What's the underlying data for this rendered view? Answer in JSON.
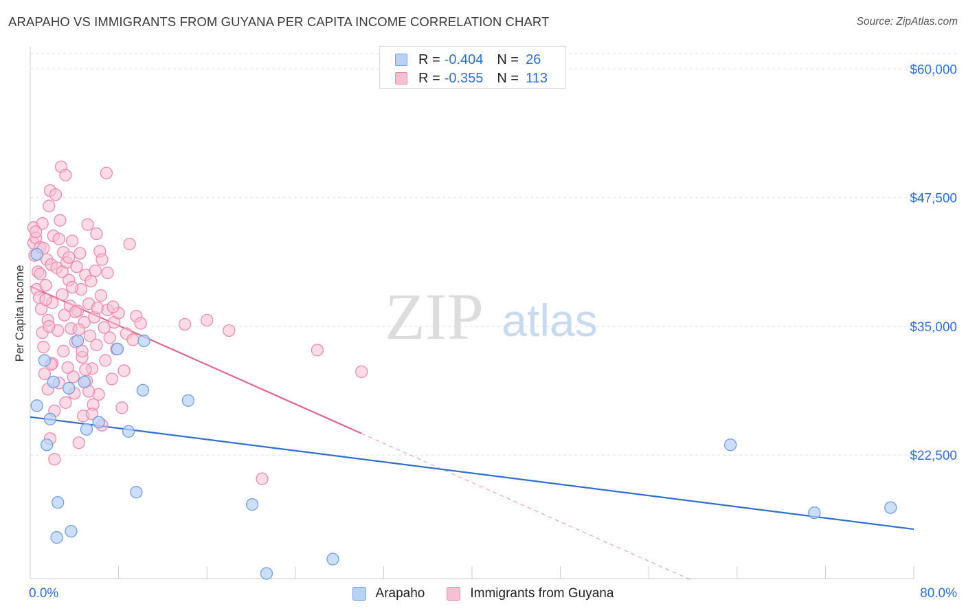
{
  "title": "ARAPAHO VS IMMIGRANTS FROM GUYANA PER CAPITA INCOME CORRELATION CHART",
  "source": "Source: ZipAtlas.com",
  "watermark": {
    "zip": "ZIP",
    "atlas": "atlas"
  },
  "colors": {
    "blue": "#2e6fd0",
    "blue_fill": "#b8d2f5",
    "blue_stroke": "#6f9fe0",
    "pink": "#e0678f",
    "pink_fill": "#f7bfd2",
    "pink_stroke": "#eb8bab",
    "axis_label": "#2e6fd0",
    "grid": "#dddddd"
  },
  "legend_top": {
    "rows": [
      {
        "r_label": "R =",
        "r_value": "-0.404",
        "n_label": "N =",
        "n_value": "26",
        "color": "blue"
      },
      {
        "r_label": "R =",
        "r_value": "-0.355",
        "n_label": "N =",
        "n_value": "113",
        "color": "pink"
      }
    ]
  },
  "legend_bottom": [
    {
      "label": "Arapaho",
      "color": "blue"
    },
    {
      "label": "Immigrants from Guyana",
      "color": "pink"
    }
  ],
  "chart_data": {
    "type": "scatter",
    "title": "ARAPAHO VS IMMIGRANTS FROM GUYANA PER CAPITA INCOME CORRELATION CHART",
    "xlabel": "",
    "ylabel": "Per Capita Income",
    "xlim": [
      0,
      80
    ],
    "ylim": [
      10500,
      61500
    ],
    "x_tick_labels": [
      "0.0%",
      "80.0%"
    ],
    "y_ticks": [
      22500,
      35000,
      47500,
      60000
    ],
    "y_tick_labels": [
      "$22,500",
      "$35,000",
      "$47,500",
      "$60,000"
    ],
    "grid": true,
    "legend": "top-center",
    "series": [
      {
        "name": "Arapaho",
        "color": "blue",
        "points": [
          [
            0.6,
            42000
          ],
          [
            0.6,
            27300
          ],
          [
            1.3,
            31700
          ],
          [
            1.8,
            26000
          ],
          [
            1.5,
            23500
          ],
          [
            2.1,
            29600
          ],
          [
            2.5,
            17900
          ],
          [
            2.4,
            14500
          ],
          [
            3.5,
            29000
          ],
          [
            3.7,
            15100
          ],
          [
            4.3,
            33600
          ],
          [
            4.9,
            29600
          ],
          [
            5.1,
            25000
          ],
          [
            6.2,
            25700
          ],
          [
            7.9,
            32800
          ],
          [
            8.9,
            24800
          ],
          [
            9.6,
            18900
          ],
          [
            10.2,
            28800
          ],
          [
            10.3,
            33600
          ],
          [
            14.3,
            27800
          ],
          [
            20.1,
            17700
          ],
          [
            21.4,
            11000
          ],
          [
            27.4,
            12400
          ],
          [
            63.4,
            23500
          ],
          [
            71.0,
            16900
          ],
          [
            77.9,
            17400
          ]
        ],
        "trend": {
          "x": [
            0,
            80
          ],
          "y": [
            26200,
            15300
          ]
        }
      },
      {
        "name": "Immigrants from Guyana",
        "color": "pink",
        "points": [
          [
            0.3,
            43100
          ],
          [
            0.3,
            44600
          ],
          [
            0.4,
            41900
          ],
          [
            0.5,
            43600
          ],
          [
            0.6,
            38600
          ],
          [
            0.7,
            40300
          ],
          [
            0.8,
            37800
          ],
          [
            0.9,
            42700
          ],
          [
            1.0,
            36700
          ],
          [
            1.1,
            34400
          ],
          [
            1.1,
            45000
          ],
          [
            1.2,
            33000
          ],
          [
            1.3,
            30400
          ],
          [
            1.4,
            39000
          ],
          [
            1.5,
            41500
          ],
          [
            1.6,
            35600
          ],
          [
            1.6,
            28900
          ],
          [
            1.7,
            46700
          ],
          [
            1.8,
            48200
          ],
          [
            1.8,
            24100
          ],
          [
            1.9,
            41000
          ],
          [
            2.0,
            37300
          ],
          [
            2.0,
            31400
          ],
          [
            2.1,
            43800
          ],
          [
            2.2,
            22100
          ],
          [
            2.3,
            47800
          ],
          [
            2.4,
            40700
          ],
          [
            2.5,
            34600
          ],
          [
            2.6,
            29500
          ],
          [
            2.7,
            45300
          ],
          [
            2.8,
            50500
          ],
          [
            2.9,
            38100
          ],
          [
            3.0,
            42200
          ],
          [
            3.0,
            32600
          ],
          [
            3.1,
            36100
          ],
          [
            3.2,
            27600
          ],
          [
            3.3,
            41200
          ],
          [
            3.4,
            31000
          ],
          [
            3.5,
            39500
          ],
          [
            3.6,
            37000
          ],
          [
            3.7,
            34800
          ],
          [
            3.8,
            43300
          ],
          [
            3.9,
            30100
          ],
          [
            4.0,
            28500
          ],
          [
            4.1,
            33500
          ],
          [
            4.2,
            40800
          ],
          [
            4.3,
            36500
          ],
          [
            4.4,
            23700
          ],
          [
            4.5,
            42100
          ],
          [
            4.6,
            38600
          ],
          [
            4.7,
            32000
          ],
          [
            4.8,
            26300
          ],
          [
            4.9,
            35400
          ],
          [
            5.0,
            40000
          ],
          [
            5.1,
            29700
          ],
          [
            5.2,
            44900
          ],
          [
            5.3,
            37200
          ],
          [
            5.4,
            34100
          ],
          [
            5.5,
            39400
          ],
          [
            5.6,
            30900
          ],
          [
            5.7,
            27400
          ],
          [
            5.8,
            35900
          ],
          [
            5.9,
            40400
          ],
          [
            6.0,
            33200
          ],
          [
            6.1,
            36800
          ],
          [
            6.2,
            28400
          ],
          [
            6.3,
            42300
          ],
          [
            6.4,
            38000
          ],
          [
            6.5,
            25400
          ],
          [
            6.7,
            34900
          ],
          [
            6.8,
            31700
          ],
          [
            6.9,
            49900
          ],
          [
            7.0,
            36600
          ],
          [
            7.2,
            33900
          ],
          [
            7.4,
            29900
          ],
          [
            7.6,
            35400
          ],
          [
            7.8,
            32800
          ],
          [
            8.0,
            36300
          ],
          [
            8.3,
            27100
          ],
          [
            8.5,
            30700
          ],
          [
            8.7,
            34300
          ],
          [
            9.0,
            43000
          ],
          [
            9.3,
            33700
          ],
          [
            9.6,
            36000
          ],
          [
            10.0,
            35300
          ],
          [
            0.5,
            44200
          ],
          [
            0.9,
            40100
          ],
          [
            1.2,
            42600
          ],
          [
            1.4,
            37600
          ],
          [
            1.7,
            35000
          ],
          [
            1.9,
            31300
          ],
          [
            2.2,
            26800
          ],
          [
            2.6,
            43500
          ],
          [
            2.9,
            40300
          ],
          [
            3.2,
            49700
          ],
          [
            3.5,
            41700
          ],
          [
            3.8,
            38800
          ],
          [
            4.1,
            36400
          ],
          [
            4.4,
            34700
          ],
          [
            4.7,
            32600
          ],
          [
            5.0,
            30800
          ],
          [
            5.3,
            28700
          ],
          [
            5.6,
            26500
          ],
          [
            6.0,
            44000
          ],
          [
            6.5,
            41500
          ],
          [
            7.0,
            40200
          ],
          [
            7.5,
            36900
          ],
          [
            14.0,
            35200
          ],
          [
            16.0,
            35600
          ],
          [
            18.0,
            34600
          ],
          [
            21.0,
            20200
          ],
          [
            26.0,
            32700
          ],
          [
            30.0,
            30600
          ]
        ],
        "trend": {
          "x": [
            0,
            30
          ],
          "y": [
            38900,
            24600
          ]
        },
        "trend_extension": {
          "x": [
            30,
            60
          ],
          "y": [
            24600,
            10300
          ]
        }
      }
    ]
  }
}
